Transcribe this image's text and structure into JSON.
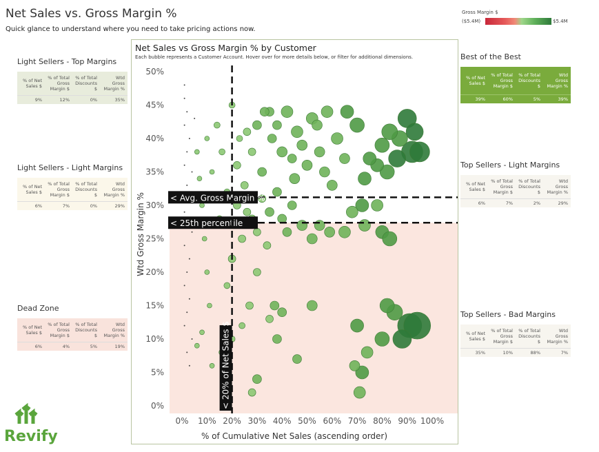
{
  "header": {
    "title": "Net Sales vs. Gross Margin %",
    "subtitle": "Quick glance to understand where you need to take pricing actions now."
  },
  "legend": {
    "title": "Gross Margin $",
    "min": "($5.4M)",
    "max": "$5.4M",
    "colors": [
      "#c8283a",
      "#f08a78",
      "#9fd68a",
      "#2f7a3a"
    ]
  },
  "columns": [
    "% of Net Sales $",
    "% of Total Gross Margin $",
    "% of Total Discounts $",
    "Wtd Gross Margin %"
  ],
  "panels": [
    {
      "title": "Light Sellers - Top Margins",
      "bg": "#e8ecdc",
      "values": [
        "9%",
        "12%",
        "0%",
        "35%"
      ]
    },
    {
      "title": "Light Sellers - Light Margins",
      "bg": "#fbf7ea",
      "values": [
        "6%",
        "7%",
        "0%",
        "29%"
      ]
    },
    {
      "title": "Dead Zone",
      "bg": "#f9e3dc",
      "values": [
        "6%",
        "4%",
        "5%",
        "19%"
      ]
    },
    {
      "title": "Best of the Best",
      "bg": "#7aab3c",
      "values": [
        "39%",
        "60%",
        "5%",
        "39%"
      ]
    },
    {
      "title": "Top Sellers - Light Margins",
      "bg": "#f7f5ef",
      "values": [
        "6%",
        "7%",
        "2%",
        "29%"
      ]
    },
    {
      "title": "Top Sellers - Bad Margins",
      "bg": "#f7f5ef",
      "values": [
        "35%",
        "10%",
        "88%",
        "7%"
      ]
    }
  ],
  "chart_data": {
    "type": "scatter",
    "title": "Net Sales vs Gross Margin % by Customer",
    "subtitle": "Each bubble represents a Customer Account. Hover over for more details below, or filter for additional dimensions.",
    "xlabel": "% of Cumulative Net Sales (ascending order)",
    "ylabel": "Wtd Gross Margin %",
    "xlim": [
      0,
      100
    ],
    "ylim": [
      0,
      50
    ],
    "xticks": [
      "0%",
      "10%",
      "20%",
      "30%",
      "40%",
      "50%",
      "60%",
      "70%",
      "80%",
      "90%",
      "100%"
    ],
    "yticks": [
      "0%",
      "5%",
      "10%",
      "15%",
      "20%",
      "25%",
      "30%",
      "35%",
      "40%",
      "45%",
      "50%"
    ],
    "reference_lines": [
      {
        "axis": "y",
        "value": 31.2,
        "label": "< Avg. Gross Margin %"
      },
      {
        "axis": "y",
        "value": 27.4,
        "label": "< 25th percentile"
      },
      {
        "axis": "x",
        "value": 20,
        "label": "< 20% of Net Sales $"
      }
    ],
    "shaded_region": {
      "below_y": 27.4,
      "color": "#fbe6df"
    },
    "points_x_y_size": [
      [
        90,
        43,
        12
      ],
      [
        93,
        41,
        11
      ],
      [
        92,
        38,
        14
      ],
      [
        95,
        38,
        13
      ],
      [
        87,
        40,
        10
      ],
      [
        83,
        41,
        10
      ],
      [
        86,
        37,
        11
      ],
      [
        80,
        39,
        9
      ],
      [
        82,
        35,
        9
      ],
      [
        78,
        36,
        8
      ],
      [
        75,
        37,
        8
      ],
      [
        73,
        34,
        8
      ],
      [
        70,
        42,
        9
      ],
      [
        66,
        44,
        8
      ],
      [
        58,
        44,
        7
      ],
      [
        52,
        43,
        7
      ],
      [
        46,
        41,
        7
      ],
      [
        42,
        44,
        7
      ],
      [
        55,
        38,
        6
      ],
      [
        62,
        40,
        7
      ],
      [
        50,
        36,
        6
      ],
      [
        45,
        34,
        6
      ],
      [
        60,
        33,
        6
      ],
      [
        65,
        37,
        6
      ],
      [
        57,
        35,
        6
      ],
      [
        40,
        38,
        6
      ],
      [
        48,
        39,
        6
      ],
      [
        54,
        42,
        6
      ],
      [
        35,
        44,
        5
      ],
      [
        38,
        42,
        5
      ],
      [
        44,
        37,
        5
      ],
      [
        72,
        30,
        8
      ],
      [
        78,
        30,
        7
      ],
      [
        68,
        29,
        7
      ],
      [
        65,
        26,
        7
      ],
      [
        73,
        27,
        7
      ],
      [
        80,
        26,
        8
      ],
      [
        83,
        25,
        9
      ],
      [
        59,
        26,
        6
      ],
      [
        55,
        27,
        6
      ],
      [
        48,
        27,
        6
      ],
      [
        52,
        25,
        6
      ],
      [
        40,
        28,
        5
      ],
      [
        44,
        30,
        5
      ],
      [
        35,
        29,
        5
      ],
      [
        38,
        32,
        5
      ],
      [
        32,
        35,
        5
      ],
      [
        36,
        40,
        5
      ],
      [
        30,
        42,
        5
      ],
      [
        33,
        44,
        5
      ],
      [
        28,
        38,
        4
      ],
      [
        25,
        33,
        4
      ],
      [
        22,
        30,
        4
      ],
      [
        24,
        25,
        4
      ],
      [
        20,
        22,
        4
      ],
      [
        18,
        18,
        3
      ],
      [
        22,
        36,
        4
      ],
      [
        26,
        41,
        4
      ],
      [
        30,
        20,
        4
      ],
      [
        27,
        15,
        4
      ],
      [
        24,
        12,
        3
      ],
      [
        20,
        10,
        3
      ],
      [
        16,
        8,
        3
      ],
      [
        12,
        6,
        2
      ],
      [
        30,
        26,
        4
      ],
      [
        34,
        24,
        4
      ],
      [
        28,
        28,
        4
      ],
      [
        32,
        31,
        4
      ],
      [
        42,
        26,
        5
      ],
      [
        26,
        29,
        4
      ],
      [
        23,
        40,
        3
      ],
      [
        18,
        32,
        3
      ],
      [
        15,
        28,
        3
      ],
      [
        16,
        38,
        3
      ],
      [
        14,
        42,
        3
      ],
      [
        20,
        45,
        3
      ],
      [
        85,
        14,
        10
      ],
      [
        91,
        12,
        16
      ],
      [
        94,
        12,
        18
      ],
      [
        82,
        15,
        9
      ],
      [
        88,
        10,
        12
      ],
      [
        80,
        10,
        9
      ],
      [
        70,
        12,
        8
      ],
      [
        74,
        8,
        7
      ],
      [
        72,
        5,
        8
      ],
      [
        69,
        6,
        6
      ],
      [
        71,
        2,
        7
      ],
      [
        52,
        15,
        6
      ],
      [
        40,
        14,
        5
      ],
      [
        38,
        10,
        5
      ],
      [
        46,
        7,
        5
      ],
      [
        30,
        4,
        5
      ],
      [
        28,
        2,
        4
      ],
      [
        35,
        13,
        4
      ],
      [
        37,
        15,
        5
      ],
      [
        1,
        48,
        1
      ],
      [
        1,
        46,
        1
      ],
      [
        2,
        44,
        1
      ],
      [
        1,
        42,
        1
      ],
      [
        3,
        40,
        1
      ],
      [
        2,
        38,
        1
      ],
      [
        1,
        36,
        1
      ],
      [
        4,
        35,
        1
      ],
      [
        2,
        33,
        1
      ],
      [
        3,
        31,
        1
      ],
      [
        1,
        29,
        1
      ],
      [
        2,
        27,
        1
      ],
      [
        4,
        26,
        1
      ],
      [
        1,
        24,
        1
      ],
      [
        3,
        22,
        1
      ],
      [
        2,
        20,
        1
      ],
      [
        1,
        18,
        1
      ],
      [
        3,
        16,
        1
      ],
      [
        2,
        14,
        1
      ],
      [
        1,
        12,
        1
      ],
      [
        4,
        10,
        1
      ],
      [
        2,
        8,
        1
      ],
      [
        3,
        6,
        1
      ],
      [
        5,
        43,
        1
      ],
      [
        6,
        38,
        2
      ],
      [
        7,
        34,
        2
      ],
      [
        8,
        30,
        2
      ],
      [
        9,
        25,
        2
      ],
      [
        10,
        20,
        2
      ],
      [
        11,
        15,
        2
      ],
      [
        8,
        11,
        2
      ],
      [
        6,
        9,
        2
      ],
      [
        12,
        35,
        2
      ],
      [
        10,
        40,
        2
      ],
      [
        13,
        27,
        2
      ]
    ]
  },
  "logo": {
    "text": "Revify"
  }
}
